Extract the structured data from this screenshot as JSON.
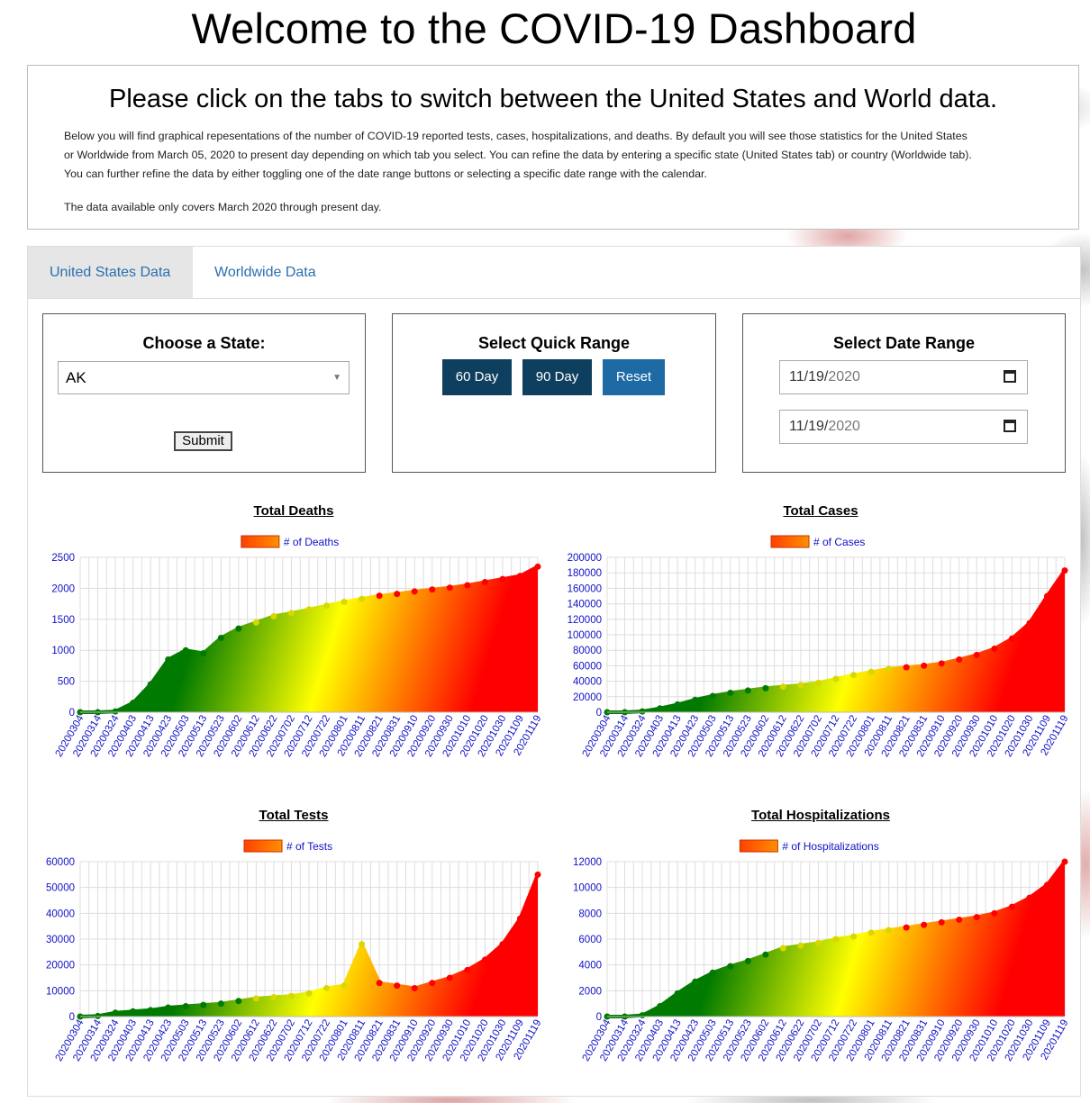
{
  "page_title": "Welcome to the COVID-19 Dashboard",
  "intro": {
    "heading": "Please click on the tabs to switch between the United States and World data.",
    "paragraph1_line1": "Below you will find graphical repesentations of the number of COVID-19 reported tests, cases, hospitalizations, and deaths. By default you will see those statistics for the United States",
    "paragraph1_line2": "or Worldwide from March 05, 2020 to present day depending on which tab you select. You can refine the data by entering a specific state (United States tab) or country (Worldwide tab).",
    "paragraph1_line3": "You can further refine the data by either toggling one of the date range buttons or selecting a specific date range with the calendar.",
    "paragraph2": "The data available only covers March 2020 through present day."
  },
  "tabs": [
    {
      "label": "United States Data",
      "active": true
    },
    {
      "label": "Worldwide Data",
      "active": false
    }
  ],
  "state_panel": {
    "heading": "Choose a State:",
    "selected_state": "AK",
    "submit_label": "Submit"
  },
  "quick_range": {
    "heading": "Select Quick Range",
    "btn_60": "60 Day",
    "btn_90": "90 Day",
    "btn_reset": "Reset"
  },
  "date_range": {
    "heading": "Select Date Range",
    "start_mm": "11",
    "start_dd": "19",
    "start_yyyy": "2020",
    "end_mm": "11",
    "end_dd": "19",
    "end_yyyy": "2020"
  },
  "colors": {
    "tab_link": "#2a6fb0",
    "btn_dark": "#0f3f5f",
    "btn_reset": "#1d6aa5",
    "axis_text": "#1010c8",
    "grid": "#dddddd",
    "green": "#007a00",
    "yellow": "#ffff00",
    "red": "#ff0000"
  },
  "chart_data": [
    {
      "type": "area",
      "title": "Total Deaths",
      "legend": "# of Deaths",
      "ylim": [
        0,
        2500
      ],
      "yticks": [
        0,
        500,
        1000,
        1500,
        2000,
        2500
      ],
      "x_labels": [
        "20200304",
        "20200314",
        "20200324",
        "20200403",
        "20200413",
        "20200423",
        "20200503",
        "20200513",
        "20200523",
        "20200602",
        "20200612",
        "20200622",
        "20200702",
        "20200712",
        "20200722",
        "20200801",
        "20200811",
        "20200821",
        "20200831",
        "20200910",
        "20200920",
        "20200930",
        "20201010",
        "20201020",
        "20201030",
        "20201109",
        "20201119"
      ],
      "values": [
        0,
        0,
        12,
        150,
        450,
        850,
        1000,
        950,
        1200,
        1350,
        1450,
        1550,
        1600,
        1660,
        1720,
        1780,
        1830,
        1880,
        1910,
        1950,
        1980,
        2010,
        2050,
        2100,
        2150,
        2200,
        2350
      ],
      "grid": true,
      "legend_position": "top"
    },
    {
      "type": "area",
      "title": "Total Cases",
      "legend": "# of Cases",
      "ylim": [
        0,
        200000
      ],
      "yticks": [
        0,
        20000,
        40000,
        60000,
        80000,
        100000,
        120000,
        140000,
        160000,
        180000,
        200000
      ],
      "x_labels": [
        "20200304",
        "20200314",
        "20200324",
        "20200403",
        "20200413",
        "20200423",
        "20200503",
        "20200513",
        "20200523",
        "20200602",
        "20200612",
        "20200622",
        "20200702",
        "20200712",
        "20200722",
        "20200801",
        "20200811",
        "20200821",
        "20200831",
        "20200910",
        "20200920",
        "20200930",
        "20201010",
        "20201020",
        "20201030",
        "20201109",
        "20201119"
      ],
      "values": [
        0,
        0,
        1000,
        5000,
        10000,
        16000,
        21000,
        25000,
        28000,
        31000,
        33000,
        35000,
        38000,
        43000,
        48000,
        52000,
        56000,
        58000,
        60000,
        63000,
        68000,
        74000,
        82000,
        95000,
        115000,
        150000,
        183000
      ],
      "grid": true,
      "legend_position": "top"
    },
    {
      "type": "area",
      "title": "Total Tests",
      "legend": "# of Tests",
      "ylim": [
        0,
        60000
      ],
      "yticks": [
        0,
        10000,
        20000,
        30000,
        40000,
        50000,
        60000
      ],
      "x_labels": [
        "20200304",
        "20200314",
        "20200324",
        "20200403",
        "20200413",
        "20200423",
        "20200503",
        "20200513",
        "20200523",
        "20200602",
        "20200612",
        "20200622",
        "20200702",
        "20200712",
        "20200722",
        "20200801",
        "20200811",
        "20200821",
        "20200831",
        "20200910",
        "20200920",
        "20200930",
        "20201010",
        "20201020",
        "20201030",
        "20201109",
        "20201119"
      ],
      "values": [
        0,
        200,
        1500,
        2000,
        2500,
        3500,
        4000,
        4500,
        5000,
        6000,
        7000,
        7500,
        8000,
        9000,
        11000,
        12000,
        28000,
        13000,
        12000,
        11000,
        13000,
        15000,
        18000,
        22000,
        28000,
        38000,
        55000
      ],
      "grid": true,
      "legend_position": "top"
    },
    {
      "type": "area",
      "title": "Total Hospitalizations",
      "legend": "# of Hospitalizations",
      "ylim": [
        0,
        12000
      ],
      "yticks": [
        0,
        2000,
        4000,
        6000,
        8000,
        10000,
        12000
      ],
      "x_labels": [
        "20200304",
        "20200314",
        "20200324",
        "20200403",
        "20200413",
        "20200423",
        "20200503",
        "20200513",
        "20200523",
        "20200602",
        "20200612",
        "20200622",
        "20200702",
        "20200712",
        "20200722",
        "20200801",
        "20200811",
        "20200821",
        "20200831",
        "20200910",
        "20200920",
        "20200930",
        "20201010",
        "20201020",
        "20201030",
        "20201109",
        "20201119"
      ],
      "values": [
        0,
        0,
        100,
        800,
        1800,
        2700,
        3400,
        3900,
        4300,
        4800,
        5300,
        5500,
        5700,
        6000,
        6200,
        6500,
        6700,
        6900,
        7100,
        7300,
        7500,
        7700,
        8000,
        8500,
        9200,
        10200,
        12000
      ],
      "grid": true,
      "legend_position": "top"
    }
  ]
}
